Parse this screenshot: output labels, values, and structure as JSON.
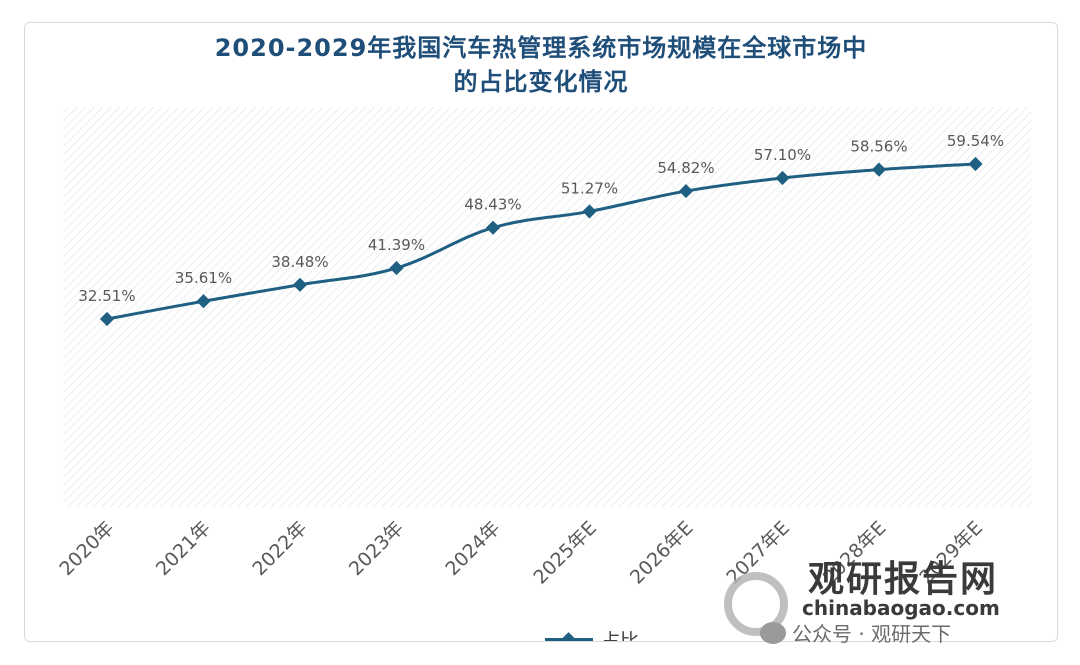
{
  "title_line1": "2020-2029年我国汽车热管理系统市场规模在全球市场中",
  "title_line2": "的占比变化情况",
  "colors": {
    "line": "#1f5f82",
    "title": "#1f4e79",
    "label": "#595959"
  },
  "watermark": {
    "cn": "观研报告网",
    "en": "chinabaogao.com",
    "account": "公众号 · 观研天下"
  },
  "chart_data": {
    "type": "line",
    "categories": [
      "2020年",
      "2021年",
      "2022年",
      "2023年",
      "2024年",
      "2025年E",
      "2026年E",
      "2027年E",
      "2028年E",
      "2029年E"
    ],
    "series": [
      {
        "name": "占比",
        "values": [
          32.51,
          35.61,
          38.48,
          41.39,
          48.43,
          51.27,
          54.82,
          57.1,
          58.56,
          59.54
        ],
        "labels": [
          "32.51%",
          "35.61%",
          "38.48%",
          "41.39%",
          "48.43%",
          "51.27%",
          "54.82%",
          "57.10%",
          "58.56%",
          "59.54%"
        ]
      }
    ],
    "xlabel": "",
    "ylabel": "",
    "legend": "bottom-center",
    "grid": false
  }
}
